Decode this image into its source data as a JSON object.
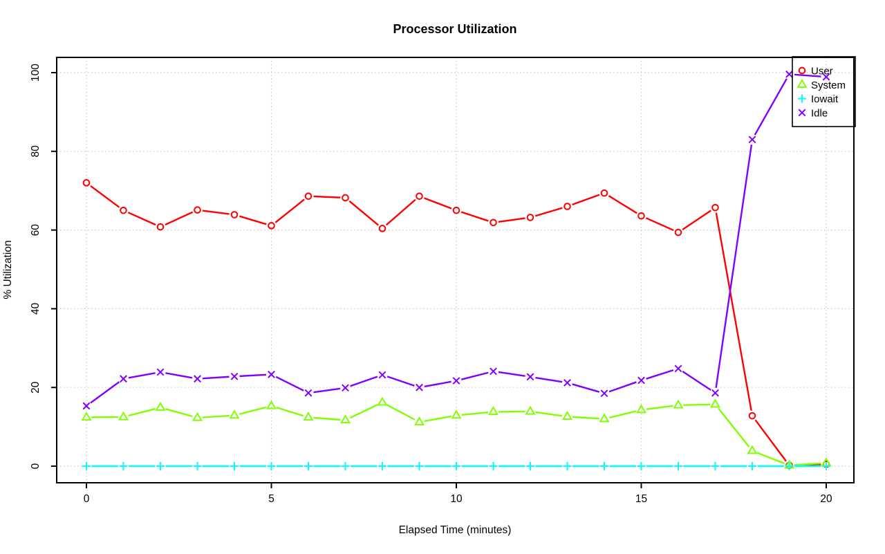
{
  "chart_data": {
    "type": "line",
    "title": "Processor Utilization",
    "xlabel": "Elapsed Time (minutes)",
    "ylabel": "% Utilization",
    "x": [
      0,
      1,
      2,
      3,
      4,
      5,
      6,
      7,
      8,
      9,
      10,
      11,
      12,
      13,
      14,
      15,
      16,
      17,
      18,
      19,
      20
    ],
    "xticks": [
      0,
      5,
      10,
      15,
      20
    ],
    "yticks": [
      0,
      20,
      40,
      60,
      80,
      100
    ],
    "xlim": [
      -0.8,
      20.75
    ],
    "ylim": [
      0,
      100
    ],
    "grid": "dotted",
    "grid_color": "#c8c8c8",
    "legend_position": "top-right",
    "line_style": "points-with-line-gaps",
    "series": [
      {
        "name": "User",
        "marker": "circle",
        "color": "#ff0000",
        "values": [
          72,
          65,
          60.8,
          65.1,
          63.9,
          61.1,
          68.6,
          68.2,
          60.4,
          68.6,
          65,
          61.9,
          63.2,
          66,
          69.4,
          63.6,
          59.4,
          65.7,
          12.8,
          0.2,
          0.5
        ]
      },
      {
        "name": "System",
        "marker": "triangle",
        "color": "#80ff00",
        "values": [
          12.4,
          12.5,
          14.9,
          12.3,
          12.9,
          15.3,
          12.4,
          11.7,
          16.2,
          11.2,
          12.9,
          13.8,
          13.9,
          12.6,
          12,
          14.3,
          15.5,
          15.7,
          3.9,
          0.2,
          0.8
        ]
      },
      {
        "name": "Iowait",
        "marker": "plus",
        "color": "#00ffff",
        "values": [
          0,
          0,
          0,
          0,
          0,
          0,
          0,
          0,
          0,
          0,
          0,
          0,
          0,
          0,
          0,
          0,
          0,
          0,
          0,
          0,
          0
        ]
      },
      {
        "name": "Idle",
        "marker": "x",
        "color": "#8000ff",
        "values": [
          15.3,
          22.2,
          23.9,
          22.2,
          22.8,
          23.3,
          18.6,
          19.9,
          23.2,
          20,
          21.7,
          24.1,
          22.7,
          21.2,
          18.5,
          21.8,
          24.8,
          18.6,
          83,
          99.6,
          98.9
        ]
      }
    ]
  },
  "colors": {
    "background": "#ffffff",
    "axis": "#000000",
    "grid": "#c8c8c8",
    "user": "#ff0000",
    "system": "#80ff00",
    "iowait": "#00ffff",
    "idle": "#8000ff"
  }
}
